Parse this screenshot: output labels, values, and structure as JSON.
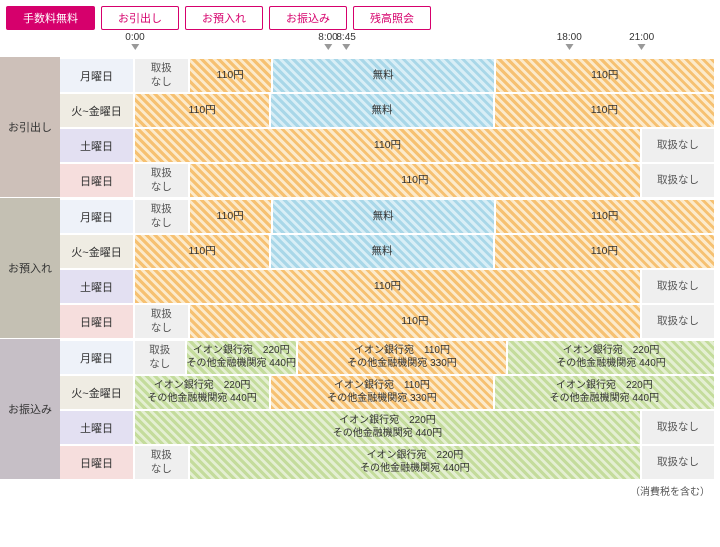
{
  "tabs": [
    {
      "label": "手数料無料",
      "active": true
    },
    {
      "label": "お引出し",
      "active": false
    },
    {
      "label": "お預入れ",
      "active": false
    },
    {
      "label": "お振込み",
      "active": false
    },
    {
      "label": "残高照会",
      "active": false
    }
  ],
  "timeline": {
    "ticks": [
      {
        "label": "0:00",
        "hour": 0
      },
      {
        "label": "8:00",
        "hour": 8
      },
      {
        "label": "8:45",
        "hour": 8.75
      },
      {
        "label": "18:00",
        "hour": 18
      },
      {
        "label": "21:00",
        "hour": 21
      }
    ],
    "total_hours": 24
  },
  "colors": {
    "section_bg": [
      "#cdc0b9",
      "#c4c0b3",
      "#c6bfc6"
    ],
    "day_mon": "#eef2f9",
    "day_tuefri": "#efece3",
    "day_sat": "#e3e0f2",
    "day_sun": "#f6dedd",
    "na_bg": "#efefef",
    "na_text": "#555"
  },
  "strings": {
    "na": "取扱\nなし",
    "na_single": "取扱なし",
    "fee110": "110円",
    "free": "無料",
    "aeon220": "イオン銀行宛　220円",
    "other440": "その他金融機関宛 440円",
    "aeon110": "イオン銀行宛　110円",
    "other330": "その他金融機関宛 330円",
    "footnote": "（消費税を含む）"
  },
  "sections": [
    {
      "label": "お引出し",
      "bg_key": 0,
      "rows": [
        {
          "day": "月曜日",
          "day_color_key": "day_mon",
          "segments": [
            {
              "span": 8,
              "type": "na",
              "text_key": "na"
            },
            {
              "span": 0.75,
              "type": "orange",
              "text_key": "fee110",
              "stretch_to": 8.75,
              "actual_span": 4.75,
              "display_center": true
            },
            {
              "span": 9.25,
              "type": "blue",
              "text_key": "free"
            },
            {
              "span": 6,
              "type": "orange",
              "text_key": "fee110"
            }
          ],
          "layout": "A"
        },
        {
          "day": "火~金曜日",
          "day_color_key": "day_tuefri",
          "segments": [
            {
              "span": 8.75,
              "type": "orange",
              "text_key": "fee110"
            },
            {
              "span": 9.25,
              "type": "blue",
              "text_key": "free"
            },
            {
              "span": 6,
              "type": "orange",
              "text_key": "fee110"
            }
          ],
          "layout": "B"
        },
        {
          "day": "土曜日",
          "day_color_key": "day_sat",
          "segments": [
            {
              "span": 21,
              "type": "orange",
              "text_key": "fee110"
            },
            {
              "span": 3,
              "type": "na",
              "text_key": "na_single"
            }
          ],
          "layout": "C"
        },
        {
          "day": "日曜日",
          "day_color_key": "day_sun",
          "segments": [
            {
              "span": 8,
              "type": "na",
              "text_key": "na"
            },
            {
              "span": 13,
              "type": "orange",
              "text_key": "fee110"
            },
            {
              "span": 3,
              "type": "na",
              "text_key": "na_single"
            }
          ],
          "layout": "D"
        }
      ]
    },
    {
      "label": "お預入れ",
      "bg_key": 1,
      "rows": [
        {
          "day": "月曜日",
          "day_color_key": "day_mon",
          "layout": "A"
        },
        {
          "day": "火~金曜日",
          "day_color_key": "day_tuefri",
          "layout": "B"
        },
        {
          "day": "土曜日",
          "day_color_key": "day_sat",
          "layout": "C"
        },
        {
          "day": "日曜日",
          "day_color_key": "day_sun",
          "layout": "D"
        }
      ]
    },
    {
      "label": "お振込み",
      "bg_key": 2,
      "rows": [
        {
          "day": "月曜日",
          "day_color_key": "day_mon",
          "layout": "TA"
        },
        {
          "day": "火~金曜日",
          "day_color_key": "day_tuefri",
          "layout": "TB"
        },
        {
          "day": "土曜日",
          "day_color_key": "day_sat",
          "layout": "TC"
        },
        {
          "day": "日曜日",
          "day_color_key": "day_sun",
          "layout": "TD"
        }
      ]
    }
  ]
}
